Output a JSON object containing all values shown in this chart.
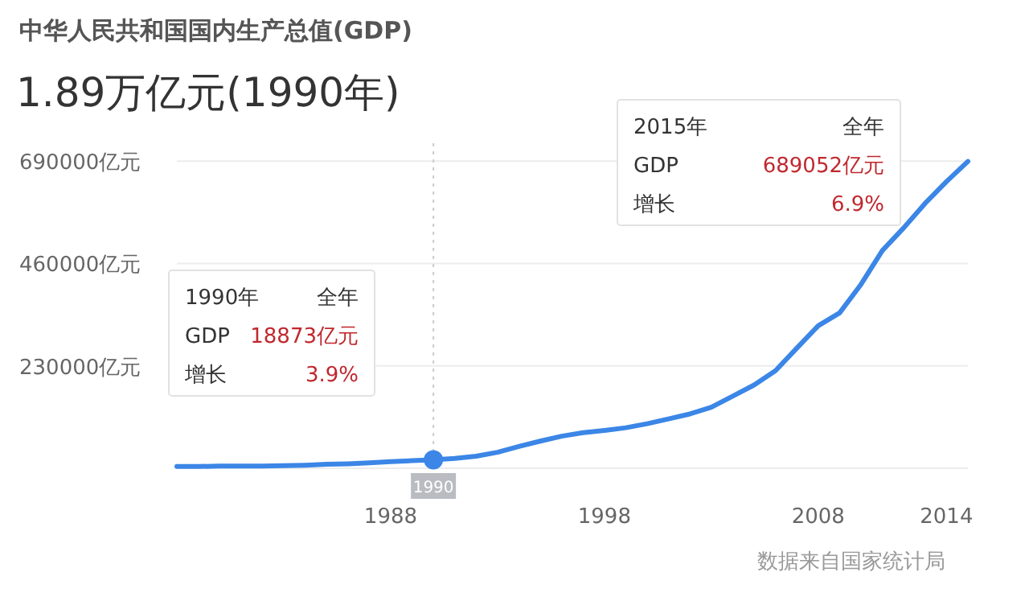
{
  "chart_data": {
    "type": "line",
    "title": "中华人民共和国国内生产总值(GDP)",
    "subtitle": "1.89万亿元(1990年)",
    "series": [
      {
        "color": "#3b86e6",
        "x": [
          1978,
          1979,
          1980,
          1981,
          1982,
          1983,
          1984,
          1985,
          1986,
          1987,
          1988,
          1989,
          1990,
          1991,
          1992,
          1993,
          1994,
          1995,
          1996,
          1997,
          1998,
          1999,
          2000,
          2001,
          2002,
          2003,
          2004,
          2005,
          2006,
          2007,
          2008,
          2009,
          2010,
          2011,
          2012,
          2013,
          2014,
          2015
        ],
        "values": [
          4000,
          4000,
          5000,
          5000,
          5000,
          6000,
          7000,
          9000,
          10000,
          12000,
          15000,
          17000,
          18873,
          22000,
          27000,
          36000,
          49000,
          61000,
          72000,
          80000,
          85000,
          91000,
          100000,
          111000,
          122000,
          137000,
          162000,
          187000,
          219000,
          270000,
          320000,
          349000,
          413000,
          489000,
          540000,
          595000,
          644000,
          689052
        ]
      },
      {
        "type": "scatter",
        "color": "#3b86e6",
        "marker": "circle",
        "x": [
          1990
        ],
        "values": [
          18873
        ]
      }
    ],
    "xlim": [
      1978,
      2015
    ],
    "xticks": [
      1988,
      1998,
      2008,
      2014
    ],
    "ylim": [
      0,
      730000
    ],
    "yticks": [
      {
        "value": 0,
        "label": null
      },
      {
        "value": 230000,
        "label": "230000亿元"
      },
      {
        "value": 460000,
        "label": "460000亿元"
      },
      {
        "value": 690000,
        "label": "690000亿元"
      }
    ],
    "grid": "y",
    "marker": "none",
    "line_style": "solid",
    "ref_lines": [
      {
        "axis": "x",
        "value": 1990,
        "label": "1990",
        "color": "#cccccc",
        "line_style": "dotted"
      }
    ],
    "annotations": [
      "1990年",
      "全年",
      "GDP",
      "18873亿元",
      "增长",
      "3.9%",
      "2015年",
      "全年",
      "GDP",
      "689052亿元",
      "增长",
      "6.9%",
      "数据来自国家统计局"
    ]
  }
}
